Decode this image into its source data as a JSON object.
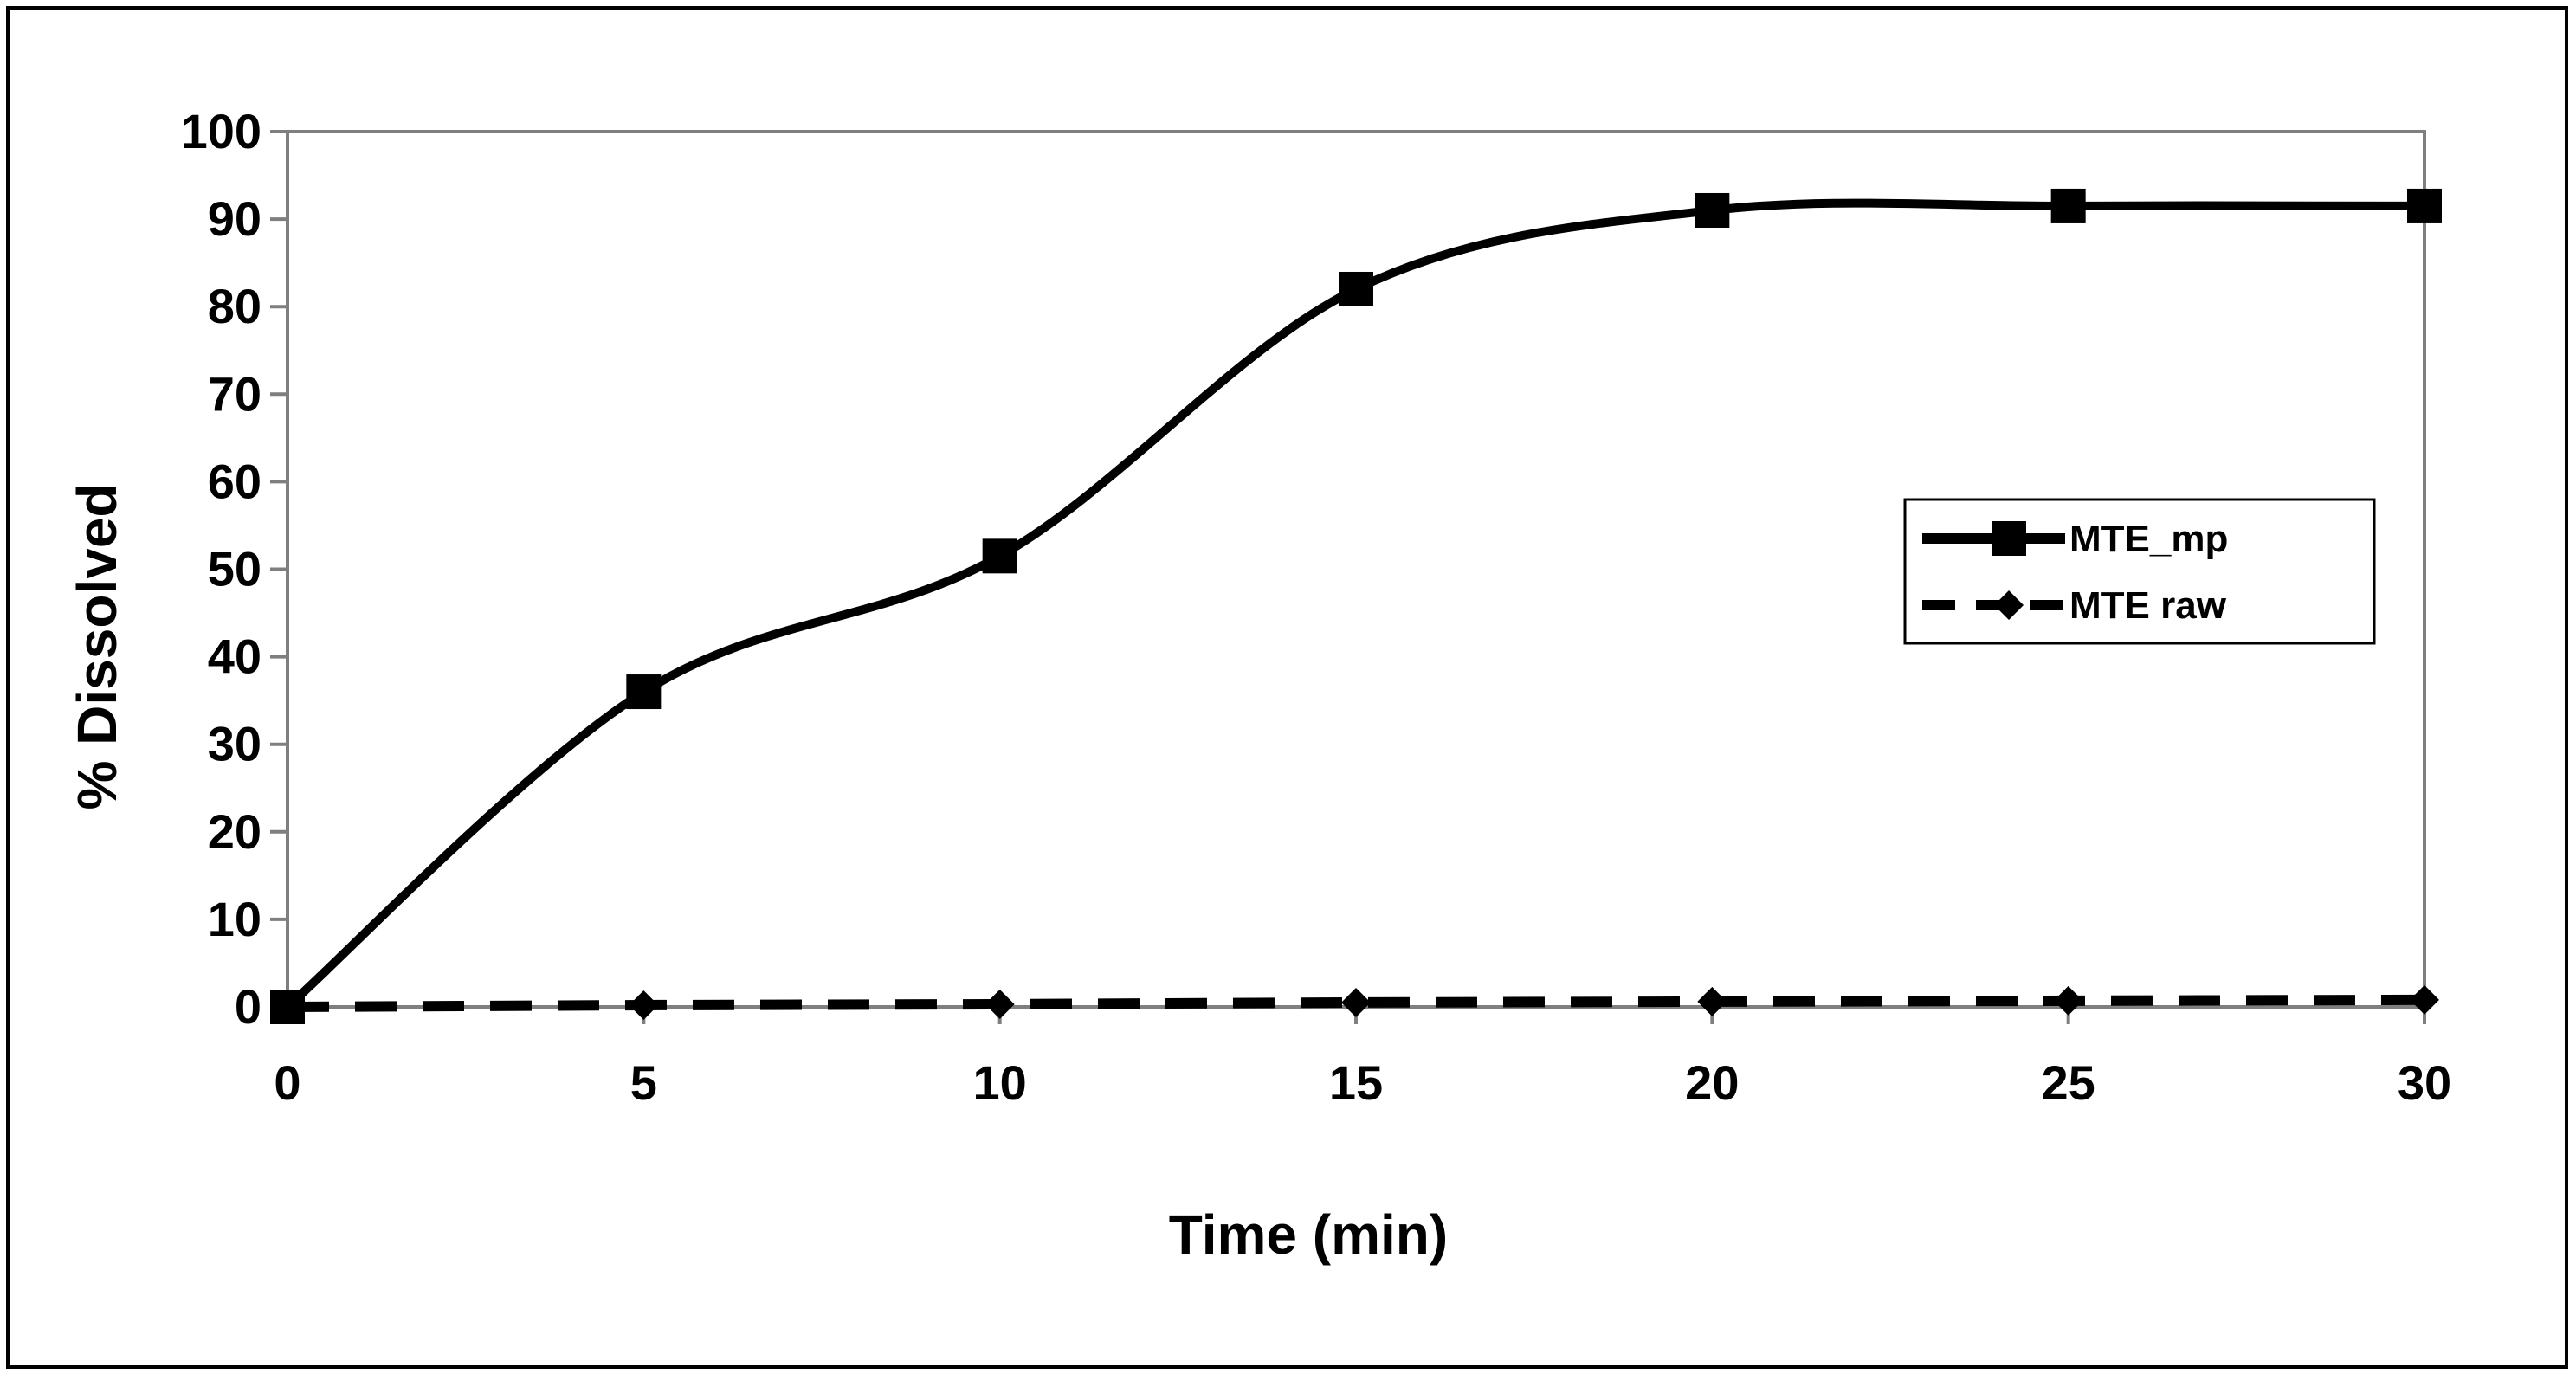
{
  "chart_data": {
    "type": "line",
    "title": "",
    "xlabel": "Time (min)",
    "ylabel": "% Dissolved",
    "xlim": [
      0,
      30
    ],
    "ylim": [
      0,
      100
    ],
    "x_ticks": [
      0,
      5,
      10,
      15,
      20,
      25,
      30
    ],
    "y_ticks": [
      0,
      10,
      20,
      30,
      40,
      50,
      60,
      70,
      80,
      90,
      100
    ],
    "grid": false,
    "legend_position": "right",
    "x": [
      0,
      5,
      10,
      15,
      20,
      25,
      30
    ],
    "series": [
      {
        "name": "MTE_mp",
        "values": [
          0,
          36,
          51.5,
          82,
          91,
          91.5,
          91.5
        ],
        "line_style": "solid",
        "marker": "square",
        "smooth": true,
        "color": "#000000"
      },
      {
        "name": "MTE raw",
        "values": [
          0,
          0.2,
          0.3,
          0.5,
          0.6,
          0.7,
          0.8
        ],
        "line_style": "dashed",
        "marker": "diamond",
        "smooth": false,
        "color": "#000000"
      }
    ]
  }
}
